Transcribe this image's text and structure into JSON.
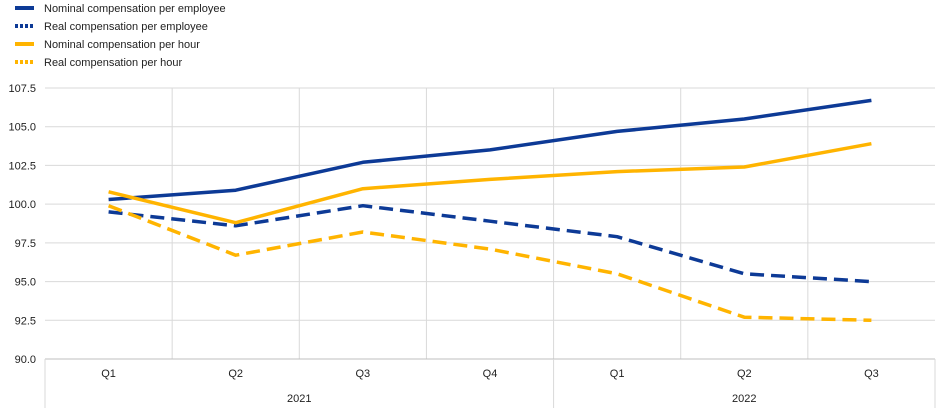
{
  "chart_data": {
    "type": "line",
    "categories": [
      "Q1",
      "Q2",
      "Q3",
      "Q4",
      "Q1",
      "Q2",
      "Q3"
    ],
    "year_groups": [
      {
        "label": "2021",
        "start": 0,
        "end": 3
      },
      {
        "label": "2022",
        "start": 4,
        "end": 6
      }
    ],
    "ylim": [
      90.0,
      107.5
    ],
    "yticks": [
      "90.0",
      "92.5",
      "95.0",
      "97.5",
      "100.0",
      "102.5",
      "105.0",
      "107.5"
    ],
    "grid": true,
    "legend_position": "top-left",
    "series": [
      {
        "name": "Nominal compensation per employee",
        "color": "#0d3a96",
        "style": "solid",
        "values": [
          100.3,
          100.9,
          102.7,
          103.5,
          104.7,
          105.5,
          106.7
        ]
      },
      {
        "name": "Real compensation per employee",
        "color": "#0d3a96",
        "style": "dashed",
        "values": [
          99.5,
          98.6,
          99.9,
          98.9,
          97.9,
          95.5,
          95.0
        ]
      },
      {
        "name": "Nominal compensation per hour",
        "color": "#ffb400",
        "style": "solid",
        "values": [
          100.8,
          98.8,
          101.0,
          101.6,
          102.1,
          102.4,
          103.9
        ]
      },
      {
        "name": "Real compensation per hour",
        "color": "#ffb400",
        "style": "dashed",
        "values": [
          99.9,
          96.7,
          98.2,
          97.1,
          95.5,
          92.7,
          92.5
        ]
      }
    ]
  }
}
